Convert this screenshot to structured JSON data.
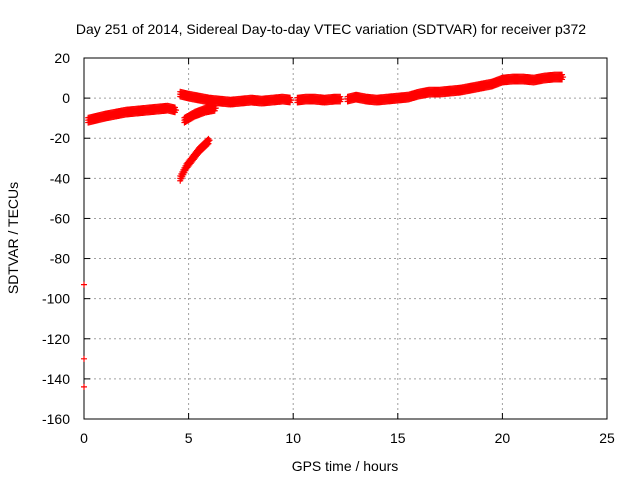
{
  "chart_data": {
    "type": "scatter",
    "title": "Day 251 of 2014, Sidereal Day-to-day VTEC variation (SDTVAR) for receiver p372",
    "xlabel": "GPS time / hours",
    "ylabel": "SDTVAR / TECUs",
    "xlim": [
      0,
      25
    ],
    "ylim": [
      -160,
      20
    ],
    "xticks": [
      0,
      5,
      10,
      15,
      20,
      25
    ],
    "yticks": [
      -160,
      -140,
      -120,
      -100,
      -80,
      -60,
      -40,
      -20,
      0,
      20
    ],
    "grid": true,
    "marker": "+",
    "color": "#ff0000",
    "series": [
      {
        "segments": [
          {
            "x": [
              0.2,
              1.0,
              2.0,
              3.0,
              3.5,
              4.0,
              4.4
            ],
            "y": [
              -11,
              -9,
              -7,
              -6,
              -5.5,
              -5,
              -6
            ]
          },
          {
            "x": [
              4.6,
              4.9,
              5.2,
              5.5,
              5.8,
              6.0
            ],
            "y": [
              -40,
              -34,
              -30,
              -26,
              -23,
              -21
            ]
          },
          {
            "x": [
              4.8,
              5.3,
              5.8,
              6.3
            ],
            "y": [
              -11,
              -8,
              -6,
              -5
            ]
          },
          {
            "x": [
              4.6,
              5.0,
              5.5,
              6.0,
              6.5,
              7.0,
              7.5,
              8.0,
              8.5,
              9.0,
              9.5,
              9.9
            ],
            "y": [
              2,
              1,
              0,
              -1,
              -1.5,
              -2,
              -1.5,
              -1,
              -1.5,
              -1,
              -0.5,
              -1
            ]
          },
          {
            "x": [
              10.2,
              10.6,
              11.0,
              11.5,
              12.0,
              12.3
            ],
            "y": [
              -1,
              -0.5,
              -0.5,
              -1,
              -0.5,
              -0.5
            ]
          },
          {
            "x": [
              12.6,
              13.0,
              13.5,
              14.0,
              14.5,
              15.0,
              15.5,
              16.0,
              16.5,
              17.0,
              17.5,
              18.0,
              18.5,
              19.0,
              19.5,
              20.0,
              20.5,
              21.0,
              21.5,
              22.0,
              22.5,
              22.9
            ],
            "y": [
              -0.5,
              0.5,
              -0.5,
              -1,
              -0.5,
              0,
              0.5,
              2,
              3,
              3,
              3.5,
              4,
              5,
              6,
              7,
              9,
              9.5,
              9.5,
              9,
              10,
              10.5,
              10.5
            ]
          },
          {
            "x": [
              0.0
            ],
            "y": [
              -93
            ]
          },
          {
            "x": [
              0.0
            ],
            "y": [
              -130
            ]
          },
          {
            "x": [
              0.0
            ],
            "y": [
              -144
            ]
          }
        ]
      }
    ]
  }
}
